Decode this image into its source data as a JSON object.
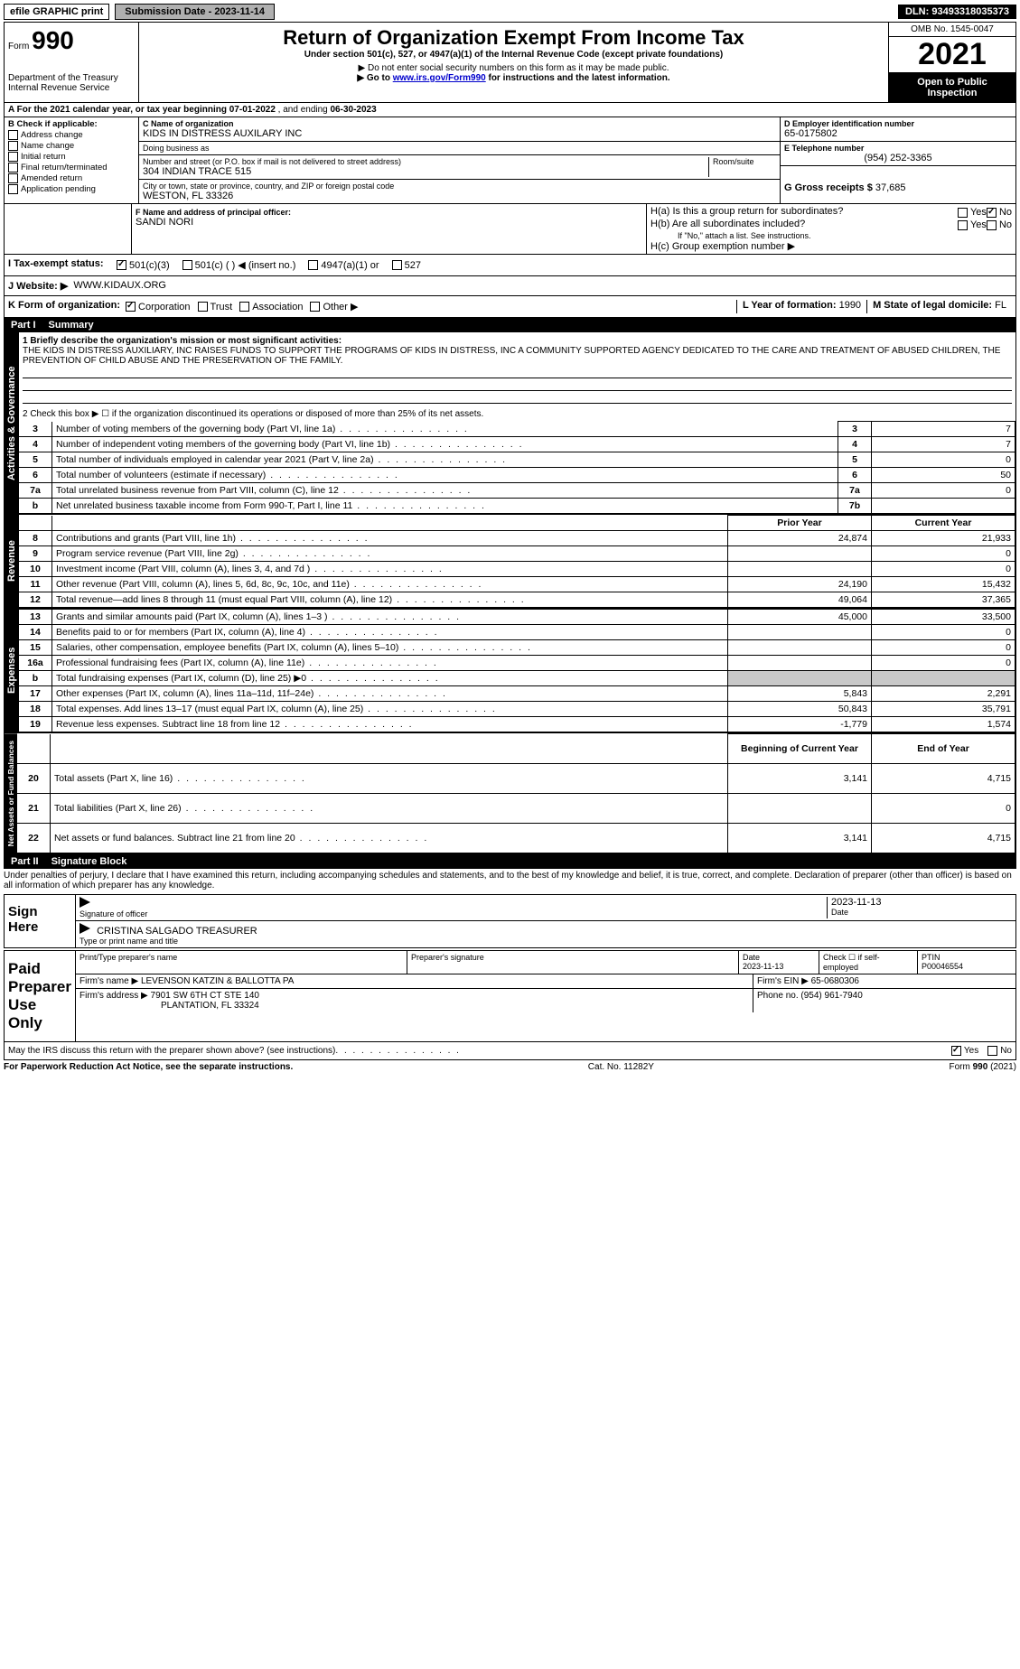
{
  "topbar": {
    "efile": "efile GRAPHIC print",
    "submission_label": "Submission Date - 2023-11-14",
    "dln": "DLN: 93493318035373"
  },
  "header": {
    "form_word": "Form",
    "form_no": "990",
    "title": "Return of Organization Exempt From Income Tax",
    "subtitle": "Under section 501(c), 527, or 4947(a)(1) of the Internal Revenue Code (except private foundations)",
    "note1": "▶ Do not enter social security numbers on this form as it may be made public.",
    "note2_pre": "▶ Go to ",
    "note2_link": "www.irs.gov/Form990",
    "note2_post": " for instructions and the latest information.",
    "dept": "Department of the Treasury\nInternal Revenue Service",
    "omb": "OMB No. 1545-0047",
    "year": "2021",
    "open": "Open to Public Inspection"
  },
  "rowA": {
    "text_pre": "A For the 2021 calendar year, or tax year beginning ",
    "begin": "07-01-2022",
    "mid": "  , and ending ",
    "end": "06-30-2023"
  },
  "B": {
    "label": "B Check if applicable:",
    "items": [
      "Address change",
      "Name change",
      "Initial return",
      "Final return/terminated",
      "Amended return",
      "Application pending"
    ]
  },
  "C": {
    "name_label": "C Name of organization",
    "name": "KIDS IN DISTRESS AUXILARY INC",
    "dba_label": "Doing business as",
    "dba": "",
    "street_label": "Number and street (or P.O. box if mail is not delivered to street address)",
    "room_label": "Room/suite",
    "street": "304 INDIAN TRACE 515",
    "city_label": "City or town, state or province, country, and ZIP or foreign postal code",
    "city": "WESTON, FL  33326"
  },
  "D": {
    "label": "D Employer identification number",
    "value": "65-0175802"
  },
  "E": {
    "label": "E Telephone number",
    "value": "(954) 252-3365"
  },
  "G": {
    "label": "G Gross receipts $",
    "value": "37,685"
  },
  "F": {
    "label": "F Name and address of principal officer:",
    "value": "SANDI NORI"
  },
  "H": {
    "a": "H(a)  Is this a group return for subordinates?",
    "a_yes": "Yes",
    "a_no": "No",
    "b": "H(b)  Are all subordinates included?",
    "b_yes": "Yes",
    "b_no": "No",
    "b_note": "If \"No,\" attach a list. See instructions.",
    "c": "H(c)  Group exemption number ▶"
  },
  "I": {
    "label": "I  Tax-exempt status:",
    "o1": "501(c)(3)",
    "o2": "501(c) (   ) ◀ (insert no.)",
    "o3": "4947(a)(1) or",
    "o4": "527"
  },
  "J": {
    "label": "J  Website: ▶",
    "value": "WWW.KIDAUX.ORG"
  },
  "K": {
    "label": "K Form of organization:",
    "o1": "Corporation",
    "o2": "Trust",
    "o3": "Association",
    "o4": "Other ▶"
  },
  "L": {
    "label": "L Year of formation:",
    "value": "1990"
  },
  "M": {
    "label": "M State of legal domicile:",
    "value": "FL"
  },
  "part1": {
    "num": "Part I",
    "title": "Summary"
  },
  "summary": {
    "line1_label": "1  Briefly describe the organization's mission or most significant activities:",
    "line1_text": "THE KIDS IN DISTRESS AUXILIARY, INC RAISES FUNDS TO SUPPORT THE PROGRAMS OF KIDS IN DISTRESS, INC A COMMUNITY SUPPORTED AGENCY DEDICATED TO THE CARE AND TREATMENT OF ABUSED CHILDREN, THE PREVENTION OF CHILD ABUSE AND THE PRESERVATION OF THE FAMILY.",
    "line2": "2  Check this box ▶ ☐ if the organization discontinued its operations or disposed of more than 25% of its net assets.",
    "rows_single": [
      {
        "n": "3",
        "desc": "Number of voting members of the governing body (Part VI, line 1a)",
        "box": "3",
        "val": "7"
      },
      {
        "n": "4",
        "desc": "Number of independent voting members of the governing body (Part VI, line 1b)",
        "box": "4",
        "val": "7"
      },
      {
        "n": "5",
        "desc": "Total number of individuals employed in calendar year 2021 (Part V, line 2a)",
        "box": "5",
        "val": "0"
      },
      {
        "n": "6",
        "desc": "Total number of volunteers (estimate if necessary)",
        "box": "6",
        "val": "50"
      },
      {
        "n": "7a",
        "desc": "Total unrelated business revenue from Part VIII, column (C), line 12",
        "box": "7a",
        "val": "0"
      },
      {
        "n": "b",
        "desc": "Net unrelated business taxable income from Form 990-T, Part I, line 11",
        "box": "7b",
        "val": ""
      }
    ],
    "col_prior": "Prior Year",
    "col_current": "Current Year",
    "revenue": [
      {
        "n": "8",
        "desc": "Contributions and grants (Part VIII, line 1h)",
        "p": "24,874",
        "c": "21,933"
      },
      {
        "n": "9",
        "desc": "Program service revenue (Part VIII, line 2g)",
        "p": "",
        "c": "0"
      },
      {
        "n": "10",
        "desc": "Investment income (Part VIII, column (A), lines 3, 4, and 7d )",
        "p": "",
        "c": "0"
      },
      {
        "n": "11",
        "desc": "Other revenue (Part VIII, column (A), lines 5, 6d, 8c, 9c, 10c, and 11e)",
        "p": "24,190",
        "c": "15,432"
      },
      {
        "n": "12",
        "desc": "Total revenue—add lines 8 through 11 (must equal Part VIII, column (A), line 12)",
        "p": "49,064",
        "c": "37,365"
      }
    ],
    "expenses": [
      {
        "n": "13",
        "desc": "Grants and similar amounts paid (Part IX, column (A), lines 1–3 )",
        "p": "45,000",
        "c": "33,500"
      },
      {
        "n": "14",
        "desc": "Benefits paid to or for members (Part IX, column (A), line 4)",
        "p": "",
        "c": "0"
      },
      {
        "n": "15",
        "desc": "Salaries, other compensation, employee benefits (Part IX, column (A), lines 5–10)",
        "p": "",
        "c": "0"
      },
      {
        "n": "16a",
        "desc": "Professional fundraising fees (Part IX, column (A), line 11e)",
        "p": "",
        "c": "0"
      },
      {
        "n": "b",
        "desc": "Total fundraising expenses (Part IX, column (D), line 25) ▶0",
        "p": "SHADE",
        "c": "SHADE"
      },
      {
        "n": "17",
        "desc": "Other expenses (Part IX, column (A), lines 11a–11d, 11f–24e)",
        "p": "5,843",
        "c": "2,291"
      },
      {
        "n": "18",
        "desc": "Total expenses. Add lines 13–17 (must equal Part IX, column (A), line 25)",
        "p": "50,843",
        "c": "35,791"
      },
      {
        "n": "19",
        "desc": "Revenue less expenses. Subtract line 18 from line 12",
        "p": "-1,779",
        "c": "1,574"
      }
    ],
    "col_begin": "Beginning of Current Year",
    "col_end": "End of Year",
    "netassets": [
      {
        "n": "20",
        "desc": "Total assets (Part X, line 16)",
        "p": "3,141",
        "c": "4,715"
      },
      {
        "n": "21",
        "desc": "Total liabilities (Part X, line 26)",
        "p": "",
        "c": "0"
      },
      {
        "n": "22",
        "desc": "Net assets or fund balances. Subtract line 21 from line 20",
        "p": "3,141",
        "c": "4,715"
      }
    ],
    "tab_gov": "Activities & Governance",
    "tab_rev": "Revenue",
    "tab_exp": "Expenses",
    "tab_net": "Net Assets or Fund Balances"
  },
  "part2": {
    "num": "Part II",
    "title": "Signature Block"
  },
  "sig": {
    "perjury": "Under penalties of perjury, I declare that I have examined this return, including accompanying schedules and statements, and to the best of my knowledge and belief, it is true, correct, and complete. Declaration of preparer (other than officer) is based on all information of which preparer has any knowledge.",
    "sign_here": "Sign Here",
    "sig_officer": "Signature of officer",
    "date_label": "Date",
    "date_val": "2023-11-13",
    "name_title": "CRISTINA SALGADO  TREASURER",
    "name_title_label": "Type or print name and title",
    "paid": "Paid Preparer Use Only",
    "h_print": "Print/Type preparer's name",
    "h_sig": "Preparer's signature",
    "h_date": "Date",
    "h_date_val": "2023-11-13",
    "h_check": "Check ☐ if self-employed",
    "h_ptin": "PTIN",
    "ptin": "P00046554",
    "firm_name_label": "Firm's name    ▶",
    "firm_name": "LEVENSON KATZIN & BALLOTTA PA",
    "firm_ein_label": "Firm's EIN ▶",
    "firm_ein": "65-0680306",
    "firm_addr_label": "Firm's address ▶",
    "firm_addr1": "7901 SW 6TH CT STE 140",
    "firm_addr2": "PLANTATION, FL  33324",
    "phone_label": "Phone no.",
    "phone": "(954) 961-7940",
    "discuss": "May the IRS discuss this return with the preparer shown above? (see instructions)",
    "yes": "Yes",
    "no": "No"
  },
  "footer": {
    "left": "For Paperwork Reduction Act Notice, see the separate instructions.",
    "mid": "Cat. No. 11282Y",
    "right": "Form 990 (2021)"
  },
  "colors": {
    "black": "#000000",
    "shade": "#c8c8c8",
    "link": "#0000cc"
  }
}
